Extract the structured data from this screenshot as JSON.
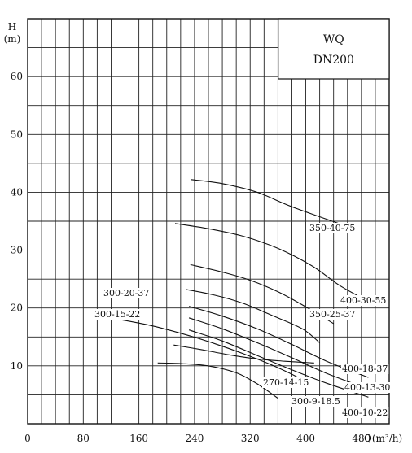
{
  "chart_data": {
    "type": "line",
    "title_lines": [
      "WQ",
      "DN200"
    ],
    "ylabel_lines": [
      "H",
      "(m)"
    ],
    "xlabel": "Q(m³/h)",
    "xlim": [
      0,
      520
    ],
    "ylim": [
      0,
      70
    ],
    "x_ticks": [
      "0",
      "80",
      "160",
      "240",
      "320",
      "400",
      "480"
    ],
    "y_ticks": [
      "10",
      "20",
      "30",
      "40",
      "50",
      "60"
    ],
    "grid": true,
    "series": [
      {
        "name": "350-40-75",
        "x": [
          235,
          280,
          330,
          380,
          450
        ],
        "y": [
          42.2,
          41.5,
          40.0,
          37.5,
          34.5
        ]
      },
      {
        "name": "400-30-55",
        "x": [
          212,
          260,
          310,
          360,
          410,
          450,
          500
        ],
        "y": [
          34.6,
          33.7,
          32.4,
          30.3,
          27.2,
          23.8,
          20.5
        ]
      },
      {
        "name": "350-25-37",
        "x": [
          234,
          280,
          320,
          360,
          400,
          440
        ],
        "y": [
          27.5,
          26.2,
          24.8,
          22.8,
          20.2,
          17.3
        ]
      },
      {
        "name": "300-20-37",
        "x": [
          228,
          270,
          310,
          350,
          395,
          420
        ],
        "y": [
          23.2,
          22.2,
          20.8,
          18.8,
          16.4,
          14.0
        ]
      },
      {
        "name": "400-18-37",
        "x": [
          232,
          280,
          330,
          380,
          430,
          490
        ],
        "y": [
          20.3,
          18.6,
          16.4,
          13.7,
          10.8,
          8.0
        ]
      },
      {
        "name": "400-13-30",
        "x": [
          232,
          280,
          330,
          380,
          430,
          490
        ],
        "y": [
          18.3,
          16.4,
          14.0,
          11.4,
          8.7,
          6.0
        ]
      },
      {
        "name": "300-15-22",
        "x": [
          133,
          180,
          230,
          270,
          310,
          350,
          390,
          400
        ],
        "y": [
          18.0,
          16.9,
          15.3,
          13.8,
          12.1,
          10.2,
          7.9,
          6.6
        ]
      },
      {
        "name": "400-10-22",
        "x": [
          232,
          280,
          330,
          380,
          430,
          490
        ],
        "y": [
          16.2,
          14.3,
          11.8,
          9.3,
          7.0,
          4.6
        ]
      },
      {
        "name": "270-14-15",
        "x": [
          210,
          250,
          290,
          330,
          370,
          412
        ],
        "y": [
          13.6,
          12.8,
          11.9,
          11.2,
          10.8,
          10.5
        ]
      },
      {
        "name": "300-9-18.5",
        "x": [
          187,
          220,
          260,
          300,
          330,
          360
        ],
        "y": [
          10.5,
          10.4,
          10.0,
          8.8,
          6.9,
          4.4
        ]
      }
    ]
  }
}
